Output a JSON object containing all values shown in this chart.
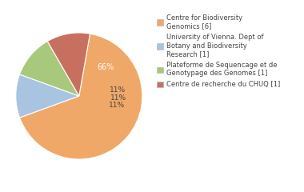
{
  "labels": [
    "Centre for Biodiversity\nGenomics [6]",
    "University of Vienna. Dept of\nBotany and Biodiversity\nResearch [1]",
    "Plateforme de Sequencage et de\nGenotypage des Genomes [1]",
    "Centre de recherche du CHUQ [1]"
  ],
  "values": [
    66,
    11,
    11,
    11
  ],
  "colors": [
    "#F0A868",
    "#A8C4E0",
    "#A8C87C",
    "#C87060"
  ],
  "pct_labels": [
    "66%",
    "11%",
    "11%",
    "11%"
  ],
  "background_color": "#ffffff",
  "text_color": "#444444",
  "fontsize": 7.0
}
